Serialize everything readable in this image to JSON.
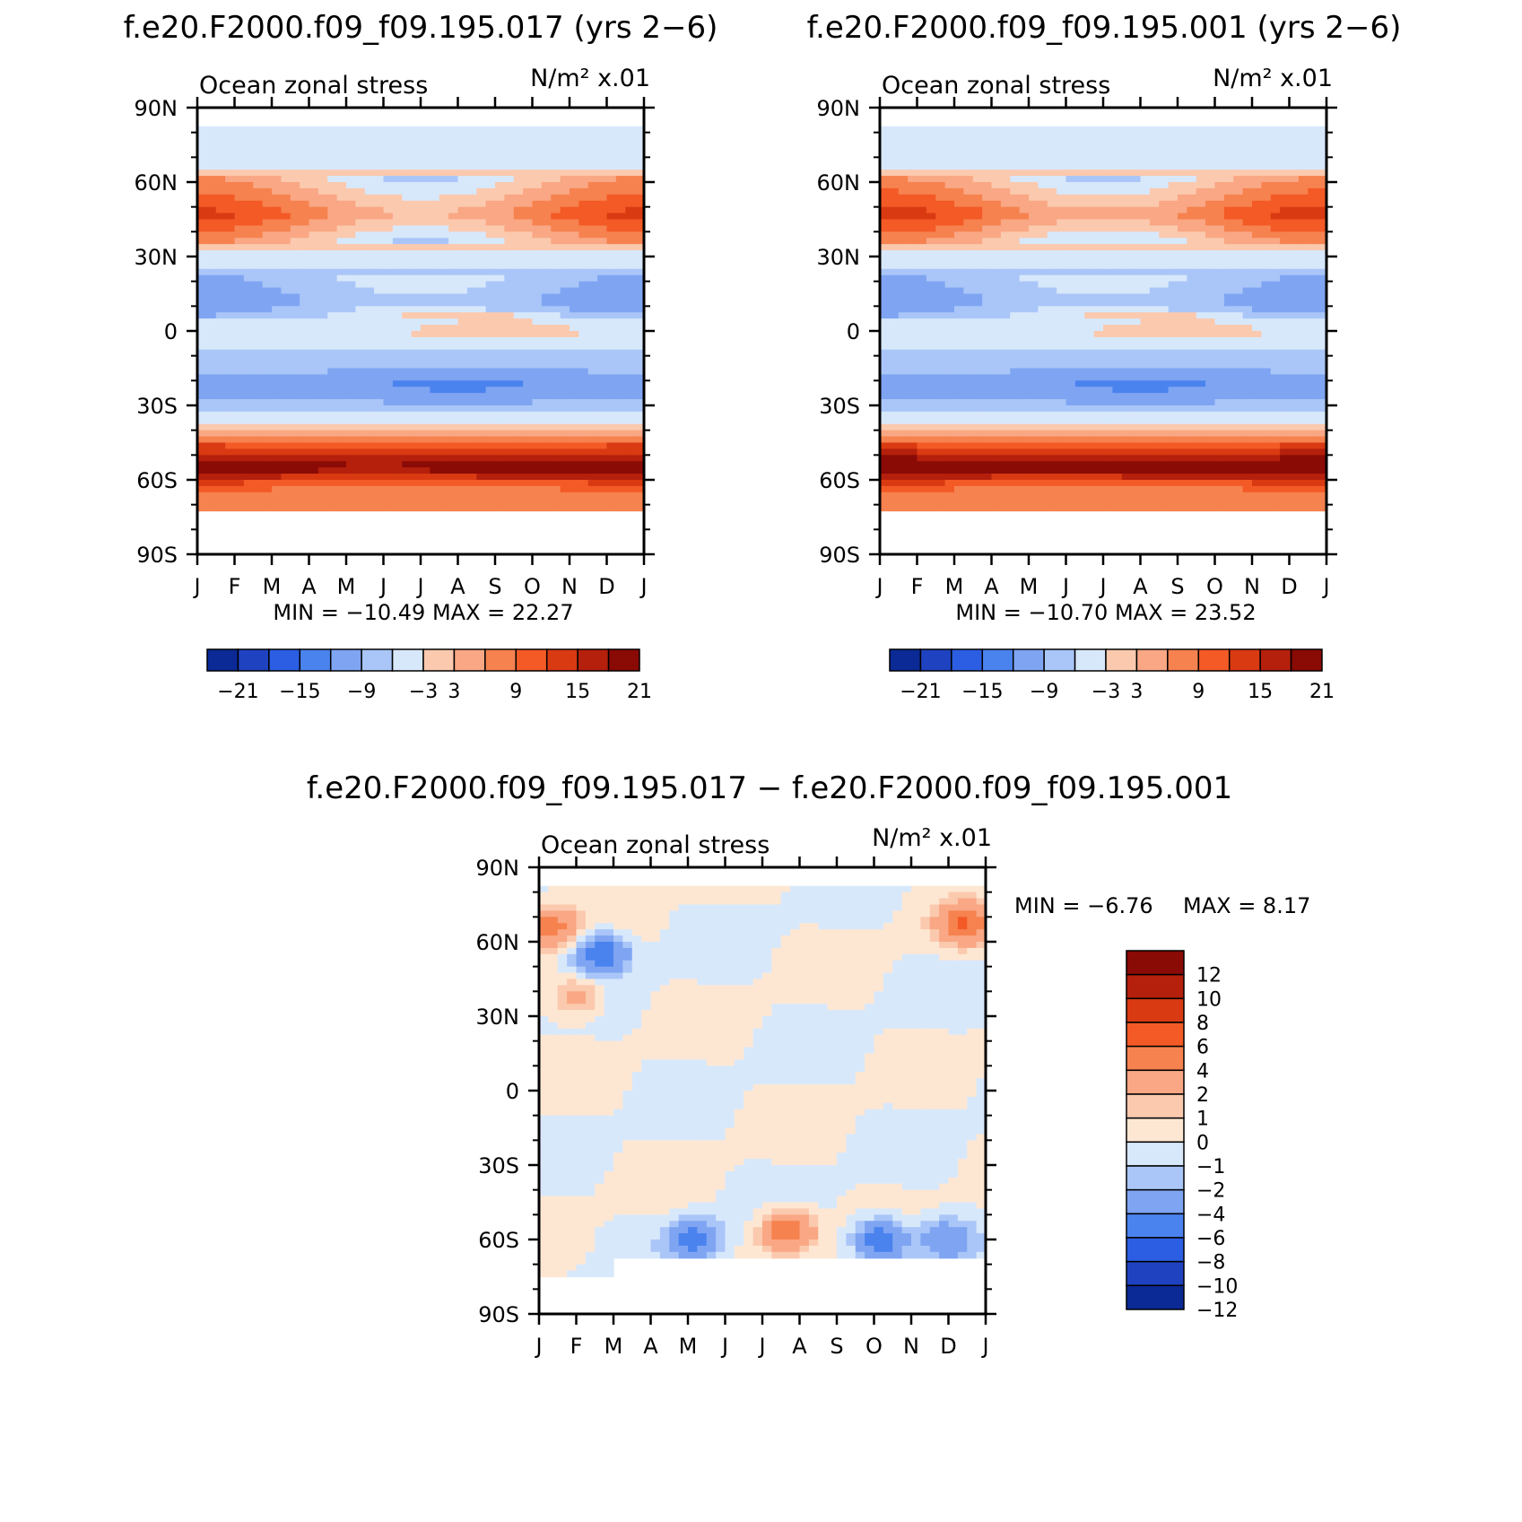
{
  "chart_data": [
    {
      "type": "heatmap",
      "id": "panel_a",
      "title": "f.e20.F2000.f09_f09.195.017 (yrs 2−6)",
      "left_label": "Ocean zonal stress",
      "units": "N/m² x.01",
      "x_ticks": [
        "J",
        "F",
        "M",
        "A",
        "M",
        "J",
        "J",
        "A",
        "S",
        "O",
        "N",
        "D",
        "J"
      ],
      "y_ticks": [
        "90N",
        "60N",
        "30N",
        "0",
        "30S",
        "60S",
        "90S"
      ],
      "ylim": [
        -90,
        90
      ],
      "stats": "MIN = −10.49  MAX =   22.27",
      "colorbar_labels": [
        "−21",
        "−15",
        "−9",
        "−3",
        "3",
        "9",
        "15",
        "21"
      ],
      "zonal_profile": [
        {
          "lat": 72,
          "value": -3
        },
        {
          "lat": 64,
          "value": 0
        },
        {
          "lat": 47,
          "value": 8
        },
        {
          "lat": 30,
          "value": -2
        },
        {
          "lat": 12,
          "value": -6
        },
        {
          "lat": 0,
          "value": -1
        },
        {
          "lat": -12,
          "value": -4
        },
        {
          "lat": -22,
          "value": -8
        },
        {
          "lat": -35,
          "value": -2
        },
        {
          "lat": -45,
          "value": 9
        },
        {
          "lat": -55,
          "value": 20
        },
        {
          "lat": -63,
          "value": 8
        }
      ]
    },
    {
      "type": "heatmap",
      "id": "panel_b",
      "title": "f.e20.F2000.f09_f09.195.001 (yrs 2−6)",
      "left_label": "Ocean zonal stress",
      "units": "N/m² x.01",
      "x_ticks": [
        "J",
        "F",
        "M",
        "A",
        "M",
        "J",
        "J",
        "A",
        "S",
        "O",
        "N",
        "D",
        "J"
      ],
      "y_ticks": [
        "90N",
        "60N",
        "30N",
        "0",
        "30S",
        "60S",
        "90S"
      ],
      "ylim": [
        -90,
        90
      ],
      "stats": "MIN = −10.70  MAX =   23.52",
      "colorbar_labels": [
        "−21",
        "−15",
        "−9",
        "−3",
        "3",
        "9",
        "15",
        "21"
      ],
      "zonal_profile": [
        {
          "lat": 72,
          "value": -3
        },
        {
          "lat": 64,
          "value": 0
        },
        {
          "lat": 47,
          "value": 9
        },
        {
          "lat": 30,
          "value": -2
        },
        {
          "lat": 12,
          "value": -6
        },
        {
          "lat": 0,
          "value": -1
        },
        {
          "lat": -12,
          "value": -4
        },
        {
          "lat": -22,
          "value": -8
        },
        {
          "lat": -35,
          "value": -2
        },
        {
          "lat": -45,
          "value": 9
        },
        {
          "lat": -55,
          "value": 21
        },
        {
          "lat": -63,
          "value": 8
        }
      ]
    },
    {
      "type": "heatmap",
      "id": "panel_diff",
      "title": "f.e20.F2000.f09_f09.195.017 − f.e20.F2000.f09_f09.195.001",
      "left_label": "Ocean zonal stress",
      "units": "N/m² x.01",
      "x_ticks": [
        "J",
        "F",
        "M",
        "A",
        "M",
        "J",
        "J",
        "A",
        "S",
        "O",
        "N",
        "D",
        "J"
      ],
      "y_ticks": [
        "90N",
        "60N",
        "30N",
        "0",
        "30S",
        "60S",
        "90S"
      ],
      "ylim": [
        -90,
        90
      ],
      "stats_min": "MIN =    −6.76",
      "stats_max": "MAX =    8.17",
      "colorbar_labels": [
        "12",
        "10",
        "8",
        "6",
        "4",
        "2",
        "1",
        "0",
        "−1",
        "−2",
        "−4",
        "−6",
        "−8",
        "−10",
        "−12"
      ],
      "features": [
        {
          "month": 1.7,
          "lat": 55,
          "value": -6
        },
        {
          "month": 1.0,
          "lat": 38,
          "value": 3
        },
        {
          "month": 6.7,
          "lat": -56,
          "value": 6
        },
        {
          "month": 9.2,
          "lat": -60,
          "value": -6
        },
        {
          "month": 4.2,
          "lat": -60,
          "value": -5
        },
        {
          "month": 10.9,
          "lat": -60,
          "value": -4
        },
        {
          "month": 11.4,
          "lat": 67,
          "value": 6
        },
        {
          "month": 0.3,
          "lat": 66,
          "value": 5
        }
      ]
    }
  ],
  "colors": {
    "neg": [
      "#0b2a96",
      "#1f43c0",
      "#2b5ee2",
      "#4b83ee",
      "#7fa5f2",
      "#aac6f8",
      "#d8e8fb"
    ],
    "zero_pos": "#fde7d3",
    "pos": [
      "#fbc9ae",
      "#f9a784",
      "#f6824f",
      "#f35a26",
      "#d93a12",
      "#b5200c",
      "#8a0a06"
    ],
    "missing": "#ffffff"
  }
}
